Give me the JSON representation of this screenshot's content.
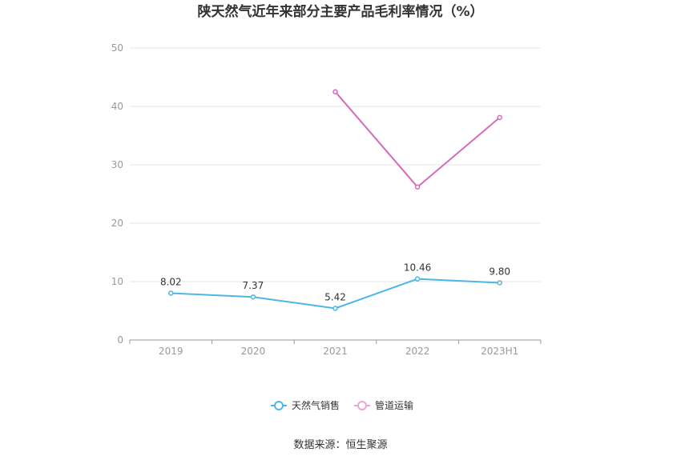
{
  "chart_data": {
    "type": "line",
    "title": "陕天然气近年来部分主要产品毛利率情况（%）",
    "categories": [
      "2019",
      "2020",
      "2021",
      "2022",
      "2023H1"
    ],
    "ylim": [
      0,
      50
    ],
    "yticks": [
      0,
      10,
      20,
      30,
      40,
      50
    ],
    "grid": true,
    "legend_position": "bottom",
    "series": [
      {
        "name": "天然气销售",
        "color": "#4db6e8",
        "values": [
          8.02,
          7.37,
          5.42,
          10.46,
          9.8
        ],
        "labels": [
          "8.02",
          "7.37",
          "5.42",
          "10.46",
          "9.80"
        ]
      },
      {
        "name": "管道运输",
        "color": "#d46bb8",
        "legend_color": "#e8a6d6",
        "values": [
          null,
          null,
          42.5,
          26.2,
          38.1
        ],
        "labels": []
      }
    ]
  },
  "source": "数据来源：恒生聚源"
}
